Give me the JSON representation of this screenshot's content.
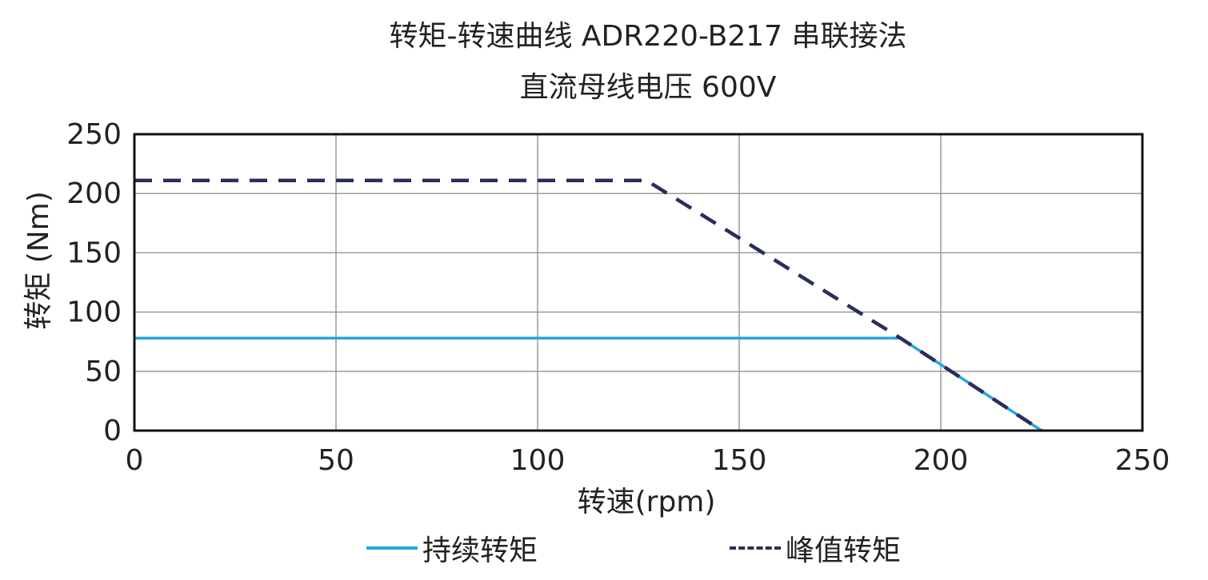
{
  "chart_data": {
    "type": "line",
    "title": "转矩-转速曲线 ADR220-B217 串联接法",
    "subtitle": "直流母线电压 600V",
    "xlabel": "转速(rpm)",
    "ylabel": "转矩 (Nm)",
    "xlim": [
      0,
      250
    ],
    "ylim": [
      0,
      250
    ],
    "xticks": [
      "0",
      "50",
      "100",
      "150",
      "200",
      "250"
    ],
    "yticks": [
      "0",
      "50",
      "100",
      "150",
      "200",
      "250"
    ],
    "grid": true,
    "legend_position": "bottom",
    "series": [
      {
        "name": "持续转矩",
        "style": "solid",
        "color": "#22a7dd",
        "x": [
          0,
          190,
          225
        ],
        "y": [
          78,
          78,
          0
        ]
      },
      {
        "name": "峰值转矩",
        "style": "dashed",
        "color": "#2a2e5c",
        "x": [
          0,
          127,
          190,
          225
        ],
        "y": [
          211,
          211,
          78,
          0
        ]
      }
    ]
  }
}
